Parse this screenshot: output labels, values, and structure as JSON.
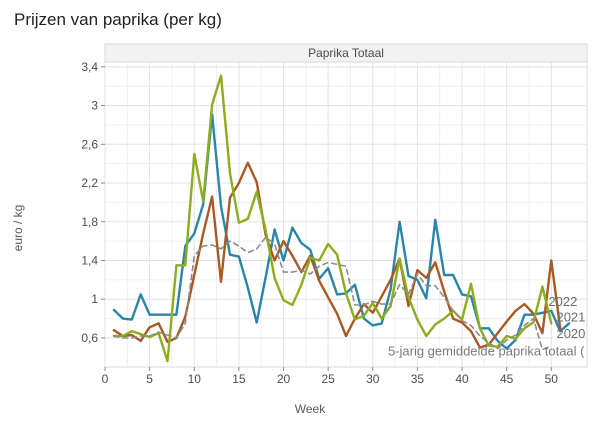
{
  "chart_data": {
    "type": "line",
    "title": "Prijzen van paprika (per kg)",
    "panel_title": "Paprika Totaal",
    "xlabel": "Week",
    "ylabel": "euro / kg",
    "xlim": [
      0,
      54
    ],
    "ylim": [
      0.3,
      3.45
    ],
    "x_ticks": [
      0,
      5,
      10,
      15,
      20,
      25,
      30,
      35,
      40,
      45,
      50
    ],
    "y_ticks": [
      0.6,
      1,
      1.4,
      1.8,
      2.2,
      2.6,
      3,
      3.4
    ],
    "y_tick_labels": [
      "0,6",
      "1",
      "1,4",
      "1,8",
      "2,2",
      "2,6",
      "3",
      "3,4"
    ],
    "grid": true,
    "series": [
      {
        "name": "2020",
        "color": "#2a86a8",
        "dashed": false,
        "points": [
          [
            1,
            0.89
          ],
          [
            2,
            0.8
          ],
          [
            3,
            0.79
          ],
          [
            4,
            1.05
          ],
          [
            5,
            0.84
          ],
          [
            6,
            0.84
          ],
          [
            7,
            0.84
          ],
          [
            8,
            0.84
          ],
          [
            9,
            1.55
          ],
          [
            10,
            1.68
          ],
          [
            11,
            1.98
          ],
          [
            12,
            2.91
          ],
          [
            13,
            1.96
          ],
          [
            14,
            1.46
          ],
          [
            15,
            1.44
          ],
          [
            16,
            1.12
          ],
          [
            17,
            0.76
          ],
          [
            18,
            1.23
          ],
          [
            19,
            1.72
          ],
          [
            20,
            1.4
          ],
          [
            21,
            1.74
          ],
          [
            22,
            1.58
          ],
          [
            23,
            1.51
          ],
          [
            24,
            1.21
          ],
          [
            25,
            1.32
          ],
          [
            26,
            1.05
          ],
          [
            27,
            1.06
          ],
          [
            28,
            1.15
          ],
          [
            29,
            0.8
          ],
          [
            30,
            0.73
          ],
          [
            31,
            0.75
          ],
          [
            32,
            1.1
          ],
          [
            33,
            1.8
          ],
          [
            34,
            1.24
          ],
          [
            35,
            1.2
          ],
          [
            36,
            1.01
          ],
          [
            37,
            1.82
          ],
          [
            38,
            1.25
          ],
          [
            39,
            1.25
          ],
          [
            40,
            1.05
          ],
          [
            41,
            1.03
          ],
          [
            42,
            0.7
          ],
          [
            43,
            0.7
          ],
          [
            44,
            0.57
          ],
          [
            45,
            0.49
          ],
          [
            46,
            0.58
          ],
          [
            47,
            0.84
          ],
          [
            48,
            0.84
          ],
          [
            49,
            0.86
          ],
          [
            50,
            0.88
          ],
          [
            51,
            0.67
          ],
          [
            52,
            0.75
          ]
        ],
        "end_label": "2020"
      },
      {
        "name": "2021",
        "color": "#a85a24",
        "dashed": false,
        "points": [
          [
            1,
            0.68
          ],
          [
            2,
            0.62
          ],
          [
            3,
            0.63
          ],
          [
            4,
            0.57
          ],
          [
            5,
            0.71
          ],
          [
            6,
            0.75
          ],
          [
            7,
            0.56
          ],
          [
            8,
            0.6
          ],
          [
            9,
            0.82
          ],
          [
            10,
            1.25
          ],
          [
            11,
            1.68
          ],
          [
            12,
            2.06
          ],
          [
            13,
            1.18
          ],
          [
            14,
            2.05
          ],
          [
            15,
            2.2
          ],
          [
            16,
            2.41
          ],
          [
            17,
            2.21
          ],
          [
            18,
            1.66
          ],
          [
            19,
            1.4
          ],
          [
            20,
            1.6
          ],
          [
            21,
            1.45
          ],
          [
            22,
            1.28
          ],
          [
            23,
            1.45
          ],
          [
            24,
            1.19
          ],
          [
            25,
            1.02
          ],
          [
            26,
            0.85
          ],
          [
            27,
            0.62
          ],
          [
            28,
            0.8
          ],
          [
            29,
            0.95
          ],
          [
            30,
            0.86
          ],
          [
            31,
            1.03
          ],
          [
            32,
            1.2
          ],
          [
            33,
            1.42
          ],
          [
            34,
            0.93
          ],
          [
            35,
            1.3
          ],
          [
            36,
            1.22
          ],
          [
            37,
            1.38
          ],
          [
            38,
            1.08
          ],
          [
            39,
            0.8
          ],
          [
            40,
            0.76
          ],
          [
            41,
            0.67
          ],
          [
            42,
            0.5
          ],
          [
            43,
            0.53
          ],
          [
            44,
            0.65
          ],
          [
            45,
            0.77
          ],
          [
            46,
            0.88
          ],
          [
            47,
            0.95
          ],
          [
            48,
            0.85
          ],
          [
            49,
            0.65
          ],
          [
            50,
            1.4
          ],
          [
            51,
            0.7
          ]
        ],
        "end_label": "2021"
      },
      {
        "name": "2022",
        "color": "#8cae1e",
        "dashed": false,
        "points": [
          [
            1,
            0.62
          ],
          [
            2,
            0.62
          ],
          [
            3,
            0.67
          ],
          [
            4,
            0.64
          ],
          [
            5,
            0.61
          ],
          [
            6,
            0.65
          ],
          [
            7,
            0.36
          ],
          [
            8,
            1.35
          ],
          [
            9,
            1.35
          ],
          [
            10,
            2.5
          ],
          [
            11,
            2.01
          ],
          [
            12,
            3.01
          ],
          [
            13,
            3.31
          ],
          [
            14,
            2.3
          ],
          [
            15,
            1.79
          ],
          [
            16,
            1.83
          ],
          [
            17,
            2.11
          ],
          [
            18,
            1.71
          ],
          [
            19,
            1.22
          ],
          [
            20,
            0.99
          ],
          [
            21,
            0.94
          ],
          [
            22,
            1.15
          ],
          [
            23,
            1.43
          ],
          [
            24,
            1.4
          ],
          [
            25,
            1.57
          ],
          [
            26,
            1.46
          ],
          [
            27,
            1.06
          ],
          [
            28,
            0.79
          ],
          [
            29,
            0.83
          ],
          [
            30,
            0.96
          ],
          [
            31,
            0.8
          ],
          [
            32,
            0.93
          ],
          [
            33,
            1.42
          ],
          [
            34,
            1.02
          ],
          [
            35,
            0.79
          ],
          [
            36,
            0.62
          ],
          [
            37,
            0.74
          ],
          [
            38,
            0.8
          ],
          [
            39,
            0.88
          ],
          [
            40,
            0.79
          ],
          [
            41,
            1.16
          ],
          [
            42,
            0.7
          ],
          [
            43,
            0.52
          ],
          [
            44,
            0.51
          ],
          [
            45,
            0.62
          ],
          [
            46,
            0.59
          ],
          [
            47,
            0.7
          ],
          [
            48,
            0.76
          ],
          [
            49,
            1.13
          ],
          [
            50,
            0.75
          ]
        ],
        "end_label": "2022"
      },
      {
        "name": "5-jarig gemiddelde paprika totaal",
        "color": "#8c8c8c",
        "dashed": true,
        "points": [
          [
            1,
            0.62
          ],
          [
            2,
            0.6
          ],
          [
            3,
            0.6
          ],
          [
            4,
            0.62
          ],
          [
            5,
            0.62
          ],
          [
            6,
            0.66
          ],
          [
            7,
            0.63
          ],
          [
            8,
            0.6
          ],
          [
            9,
            0.75
          ],
          [
            10,
            1.45
          ],
          [
            11,
            1.55
          ],
          [
            12,
            1.56
          ],
          [
            13,
            1.52
          ],
          [
            14,
            1.6
          ],
          [
            15,
            1.55
          ],
          [
            16,
            1.48
          ],
          [
            17,
            1.52
          ],
          [
            18,
            1.64
          ],
          [
            19,
            1.57
          ],
          [
            20,
            1.28
          ],
          [
            21,
            1.28
          ],
          [
            22,
            1.3
          ],
          [
            23,
            1.26
          ],
          [
            24,
            1.34
          ],
          [
            25,
            1.38
          ],
          [
            26,
            1.36
          ],
          [
            27,
            1.34
          ],
          [
            28,
            0.94
          ],
          [
            29,
            0.94
          ],
          [
            30,
            0.98
          ],
          [
            31,
            0.95
          ],
          [
            32,
            0.95
          ],
          [
            33,
            1.15
          ],
          [
            34,
            1.05
          ],
          [
            35,
            1.26
          ],
          [
            36,
            1.14
          ],
          [
            37,
            1.14
          ],
          [
            38,
            1.02
          ],
          [
            39,
            0.88
          ],
          [
            40,
            0.78
          ],
          [
            41,
            0.73
          ],
          [
            42,
            0.62
          ],
          [
            43,
            0.55
          ],
          [
            44,
            0.49
          ],
          [
            45,
            0.58
          ],
          [
            46,
            0.63
          ],
          [
            47,
            0.73
          ],
          [
            48,
            0.8
          ],
          [
            49,
            0.48
          ],
          [
            50,
            0.52
          ]
        ],
        "end_label": "5-jarig gemiddelde paprika totaal ("
      }
    ]
  }
}
